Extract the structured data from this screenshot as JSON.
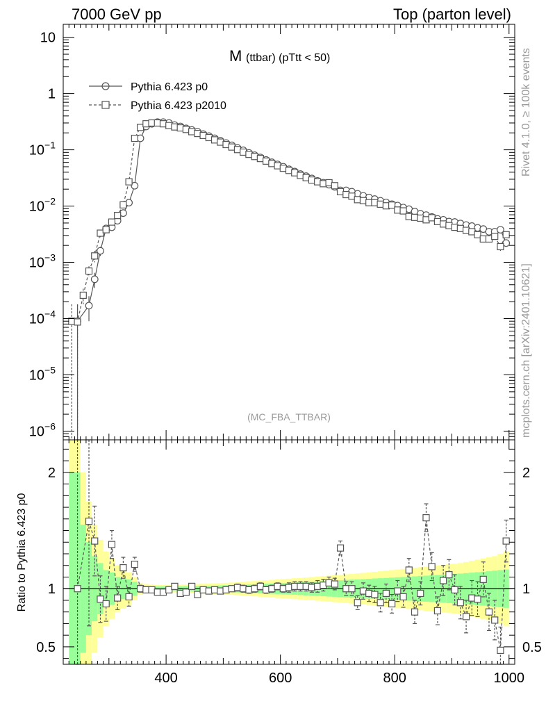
{
  "header": {
    "left": "7000 GeV pp",
    "right": "Top (parton level)"
  },
  "side_labels": {
    "rivet": "Rivet 4.1.0, ≥ 100k events",
    "mcplots": "mcplots.cern.ch [arXiv:2401.10621]"
  },
  "colors": {
    "series": "#555555",
    "band_yellow": "#ffff99",
    "band_green": "#99ff99",
    "axis": "#000000",
    "watermark": "#999999"
  },
  "chart_data": [
    {
      "type": "line",
      "panel": "main",
      "title_main": "M",
      "title_sub": "(ttbar)  (pTtt < 50)",
      "watermark": "(MC_FBA_TTBAR)",
      "yscale": "log",
      "xlim": [
        220,
        1010
      ],
      "ylim": [
        7e-07,
        17
      ],
      "yticks": [
        {
          "value": 1e-06,
          "base": "10",
          "exp": "−6"
        },
        {
          "value": 1e-05,
          "base": "10",
          "exp": "−5"
        },
        {
          "value": 0.0001,
          "base": "10",
          "exp": "−4"
        },
        {
          "value": 0.001,
          "base": "10",
          "exp": "−3"
        },
        {
          "value": 0.01,
          "base": "10",
          "exp": "−2"
        },
        {
          "value": 0.1,
          "base": "10",
          "exp": "−1"
        },
        {
          "value": 1,
          "base": "1",
          "exp": ""
        },
        {
          "value": 10,
          "base": "10",
          "exp": ""
        }
      ],
      "legend": [
        {
          "label": "Pythia 6.423 p0",
          "marker": "circle",
          "dash": "solid"
        },
        {
          "label": "Pythia 6.423 p2010",
          "marker": "square",
          "dash": "dashed"
        }
      ],
      "series": [
        {
          "name": "Pythia 6.423 p0",
          "x": [
            245,
            265,
            275,
            285,
            295,
            305,
            315,
            325,
            335,
            345,
            355,
            365,
            375,
            385,
            395,
            405,
            415,
            425,
            435,
            445,
            455,
            465,
            475,
            485,
            495,
            505,
            515,
            525,
            535,
            545,
            555,
            565,
            575,
            585,
            595,
            605,
            615,
            625,
            635,
            645,
            655,
            665,
            675,
            685,
            695,
            705,
            715,
            725,
            735,
            745,
            755,
            765,
            775,
            785,
            795,
            805,
            815,
            825,
            835,
            845,
            855,
            865,
            875,
            885,
            895,
            905,
            915,
            925,
            935,
            945,
            955,
            965,
            975,
            985,
            995
          ],
          "y": [
            9e-05,
            0.00017,
            0.0005,
            0.0016,
            0.004,
            0.0042,
            0.0055,
            0.0075,
            0.0115,
            0.023,
            0.16,
            0.26,
            0.29,
            0.31,
            0.31,
            0.3,
            0.275,
            0.26,
            0.24,
            0.225,
            0.21,
            0.19,
            0.175,
            0.16,
            0.145,
            0.132,
            0.12,
            0.108,
            0.098,
            0.088,
            0.08,
            0.073,
            0.066,
            0.06,
            0.055,
            0.05,
            0.045,
            0.041,
            0.037,
            0.034,
            0.031,
            0.028,
            0.026,
            0.024,
            0.022,
            0.019,
            0.019,
            0.018,
            0.0165,
            0.0152,
            0.0142,
            0.0133,
            0.0124,
            0.0116,
            0.0108,
            0.0102,
            0.0094,
            0.0088,
            0.008,
            0.0073,
            0.0069,
            0.0064,
            0.0059,
            0.0057,
            0.0053,
            0.0052,
            0.0049,
            0.0046,
            0.0044,
            0.0041,
            0.0039,
            0.0035,
            0.0035,
            0.0038,
            0.0022
          ],
          "err": [
            9e-05,
            8e-05,
            0.00015,
            0.0003,
            0.0005,
            0.0004,
            0.0004,
            0.0005,
            0.0007,
            0.0012,
            0.004,
            0.005,
            0.005,
            0.005,
            0.005,
            0.005,
            0.005,
            0.005,
            0.004,
            0.004,
            0.004,
            0.004,
            0.004,
            0.003,
            0.003,
            0.003,
            0.003,
            0.003,
            0.002,
            0.002,
            0.002,
            0.002,
            0.002,
            0.0015,
            0.0015,
            0.0013,
            0.0012,
            0.0011,
            0.001,
            0.001,
            0.0009,
            0.0009,
            0.0008,
            0.0008,
            0.0008,
            0.0007,
            0.0007,
            0.0007,
            0.0006,
            0.0006,
            0.0006,
            0.0005,
            0.0005,
            0.0005,
            0.0005,
            0.0005,
            0.0005,
            0.0004,
            0.0004,
            0.0004,
            0.0004,
            0.0004,
            0.0004,
            0.0004,
            0.0004,
            0.0004,
            0.0003,
            0.0003,
            0.0003,
            0.0003,
            0.0003,
            0.0003,
            0.0003,
            0.0004,
            0.0003
          ]
        },
        {
          "name": "Pythia 6.423 p2010",
          "x": [
            235,
            245,
            255,
            265,
            275,
            285,
            295,
            305,
            315,
            325,
            335,
            345,
            355,
            365,
            375,
            385,
            395,
            405,
            415,
            425,
            435,
            445,
            455,
            465,
            475,
            485,
            495,
            505,
            515,
            525,
            535,
            545,
            555,
            565,
            575,
            585,
            595,
            605,
            615,
            625,
            635,
            645,
            655,
            665,
            675,
            685,
            695,
            705,
            715,
            725,
            735,
            745,
            755,
            765,
            775,
            785,
            795,
            805,
            815,
            825,
            835,
            845,
            855,
            865,
            875,
            885,
            895,
            905,
            915,
            925,
            935,
            945,
            955,
            965,
            975,
            985,
            995
          ],
          "y": [
            9e-05,
            8.7e-05,
            0.00026,
            0.0007,
            0.0013,
            0.0033,
            0.0038,
            0.0052,
            0.0068,
            0.0105,
            0.027,
            0.16,
            0.25,
            0.29,
            0.3,
            0.3,
            0.29,
            0.27,
            0.255,
            0.245,
            0.23,
            0.21,
            0.195,
            0.18,
            0.165,
            0.15,
            0.137,
            0.124,
            0.112,
            0.101,
            0.091,
            0.083,
            0.076,
            0.07,
            0.063,
            0.057,
            0.052,
            0.047,
            0.043,
            0.039,
            0.035,
            0.032,
            0.029,
            0.027,
            0.025,
            0.026,
            0.023,
            0.018,
            0.016,
            0.015,
            0.013,
            0.0125,
            0.0115,
            0.0115,
            0.0108,
            0.0101,
            0.0104,
            0.0085,
            0.0082,
            0.0065,
            0.0063,
            0.0061,
            0.0057,
            0.0062,
            0.0053,
            0.0048,
            0.0045,
            0.0042,
            0.004,
            0.0037,
            0.0035,
            0.0031,
            0.0026,
            0.0026,
            0.0029,
            0.0019,
            0.0031
          ],
          "err": [
            9e-05,
            9e-05,
            8e-05,
            0.00015,
            0.0003,
            0.0005,
            0.0004,
            0.0004,
            0.0005,
            0.0007,
            0.0013,
            0.004,
            0.005,
            0.005,
            0.005,
            0.005,
            0.005,
            0.005,
            0.005,
            0.004,
            0.004,
            0.004,
            0.004,
            0.004,
            0.003,
            0.003,
            0.003,
            0.003,
            0.003,
            0.002,
            0.002,
            0.002,
            0.002,
            0.002,
            0.0015,
            0.0015,
            0.0013,
            0.0012,
            0.0011,
            0.001,
            0.001,
            0.0009,
            0.0009,
            0.0008,
            0.0008,
            0.0008,
            0.0007,
            0.0007,
            0.0007,
            0.0006,
            0.0006,
            0.0006,
            0.0005,
            0.0005,
            0.0005,
            0.0005,
            0.0005,
            0.0005,
            0.0004,
            0.0004,
            0.0004,
            0.0004,
            0.0004,
            0.0004,
            0.0004,
            0.0004,
            0.0004,
            0.0003,
            0.0003,
            0.0003,
            0.0003,
            0.0003,
            0.0003,
            0.0003,
            0.0003,
            0.0003,
            0.0003
          ]
        }
      ]
    },
    {
      "type": "line",
      "panel": "ratio",
      "ylabel": "Ratio to Pythia 6.423 p0",
      "xlim": [
        220,
        1010
      ],
      "ylim": [
        0.35,
        2.28
      ],
      "yticks": [
        0.5,
        1,
        2
      ],
      "ytick_labels": [
        "0.5",
        "1",
        "2"
      ],
      "xticks": [
        400,
        600,
        800,
        1000
      ],
      "xtick_labels": [
        "400",
        "600",
        "800",
        "1000"
      ],
      "reference": 1,
      "band": {
        "x": [
          235,
          245,
          255,
          265,
          275,
          285,
          295,
          305,
          315,
          325,
          335,
          345,
          355,
          365,
          375,
          385,
          395,
          405,
          415,
          425,
          435,
          445,
          455,
          465,
          475,
          485,
          495,
          505,
          515,
          525,
          535,
          545,
          555,
          565,
          575,
          585,
          595,
          605,
          615,
          625,
          635,
          645,
          655,
          665,
          675,
          685,
          695,
          705,
          715,
          725,
          735,
          745,
          755,
          765,
          775,
          785,
          795,
          805,
          815,
          825,
          835,
          845,
          855,
          865,
          875,
          885,
          895,
          905,
          915,
          925,
          935,
          945,
          955,
          965,
          975,
          985,
          995
        ],
        "green": [
          1.0,
          1.0,
          0.55,
          0.4,
          0.28,
          0.22,
          0.16,
          0.14,
          0.1,
          0.09,
          0.08,
          0.06,
          0.03,
          0.025,
          0.022,
          0.02,
          0.02,
          0.02,
          0.02,
          0.02,
          0.022,
          0.022,
          0.024,
          0.024,
          0.026,
          0.026,
          0.028,
          0.03,
          0.03,
          0.032,
          0.034,
          0.036,
          0.038,
          0.04,
          0.042,
          0.044,
          0.046,
          0.048,
          0.05,
          0.052,
          0.055,
          0.058,
          0.06,
          0.062,
          0.065,
          0.068,
          0.07,
          0.072,
          0.075,
          0.078,
          0.08,
          0.082,
          0.085,
          0.088,
          0.09,
          0.092,
          0.095,
          0.098,
          0.1,
          0.103,
          0.106,
          0.11,
          0.112,
          0.115,
          0.118,
          0.12,
          0.124,
          0.128,
          0.13,
          0.134,
          0.138,
          0.142,
          0.146,
          0.15,
          0.155,
          0.16,
          0.165
        ],
        "yellow": [
          1.5,
          1.5,
          1.0,
          0.75,
          0.55,
          0.42,
          0.32,
          0.26,
          0.2,
          0.17,
          0.14,
          0.1,
          0.05,
          0.04,
          0.035,
          0.033,
          0.032,
          0.032,
          0.032,
          0.034,
          0.036,
          0.038,
          0.04,
          0.042,
          0.044,
          0.046,
          0.048,
          0.05,
          0.053,
          0.056,
          0.06,
          0.063,
          0.066,
          0.07,
          0.073,
          0.076,
          0.08,
          0.083,
          0.086,
          0.09,
          0.093,
          0.096,
          0.1,
          0.104,
          0.108,
          0.112,
          0.116,
          0.12,
          0.124,
          0.128,
          0.132,
          0.136,
          0.14,
          0.145,
          0.15,
          0.155,
          0.16,
          0.165,
          0.17,
          0.175,
          0.18,
          0.185,
          0.19,
          0.195,
          0.2,
          0.205,
          0.21,
          0.215,
          0.22,
          0.23,
          0.24,
          0.25,
          0.26,
          0.27,
          0.28,
          0.3,
          0.32
        ]
      },
      "series": [
        {
          "name": "Pythia 6.423 p2010",
          "x": [
            245,
            265,
            275,
            285,
            295,
            305,
            315,
            325,
            335,
            345,
            355,
            365,
            375,
            385,
            395,
            405,
            415,
            425,
            435,
            445,
            455,
            465,
            475,
            485,
            495,
            505,
            515,
            525,
            535,
            545,
            555,
            565,
            575,
            585,
            595,
            605,
            615,
            625,
            635,
            645,
            655,
            665,
            675,
            685,
            695,
            705,
            715,
            725,
            735,
            745,
            755,
            765,
            775,
            785,
            795,
            805,
            815,
            825,
            835,
            845,
            855,
            865,
            875,
            885,
            895,
            905,
            915,
            925,
            935,
            945,
            955,
            965,
            975,
            985,
            995
          ],
          "y": [
            1.0,
            1.58,
            1.41,
            0.91,
            0.87,
            1.38,
            0.92,
            1.18,
            0.93,
            1.21,
            1.0,
            0.99,
            0.99,
            0.97,
            0.97,
            0.99,
            1.02,
            0.96,
            0.97,
            1.02,
            0.95,
            0.99,
            0.98,
            0.99,
            0.98,
            0.99,
            1.0,
            1.01,
            1.0,
            0.99,
            1.0,
            1.02,
            0.99,
            1.0,
            1.02,
            1.0,
            1.01,
            1.02,
            1.02,
            1.02,
            1.01,
            1.02,
            1.03,
            1.05,
            1.04,
            1.35,
            1.0,
            1.0,
            0.88,
            0.98,
            0.96,
            0.95,
            0.88,
            0.96,
            0.87,
            0.98,
            0.93,
            1.16,
            0.8,
            0.96,
            1.61,
            1.19,
            0.81,
            1.07,
            1.12,
            0.99,
            0.88,
            0.76,
            0.92,
            0.91,
            1.08,
            0.8,
            0.73,
            0.47,
            1.41
          ],
          "err": [
            2.0,
            0.9,
            0.3,
            0.2,
            0.15,
            0.12,
            0.1,
            0.09,
            0.08,
            0.06,
            0.03,
            0.025,
            0.02,
            0.02,
            0.02,
            0.02,
            0.02,
            0.02,
            0.02,
            0.02,
            0.02,
            0.02,
            0.02,
            0.02,
            0.02,
            0.02,
            0.02,
            0.03,
            0.03,
            0.03,
            0.03,
            0.03,
            0.03,
            0.03,
            0.03,
            0.03,
            0.04,
            0.04,
            0.04,
            0.04,
            0.04,
            0.05,
            0.05,
            0.05,
            0.05,
            0.06,
            0.06,
            0.06,
            0.06,
            0.07,
            0.07,
            0.07,
            0.08,
            0.08,
            0.08,
            0.09,
            0.09,
            0.1,
            0.1,
            0.1,
            0.12,
            0.12,
            0.12,
            0.13,
            0.13,
            0.13,
            0.14,
            0.14,
            0.15,
            0.15,
            0.15,
            0.16,
            0.17,
            0.2,
            0.18
          ]
        }
      ]
    }
  ]
}
